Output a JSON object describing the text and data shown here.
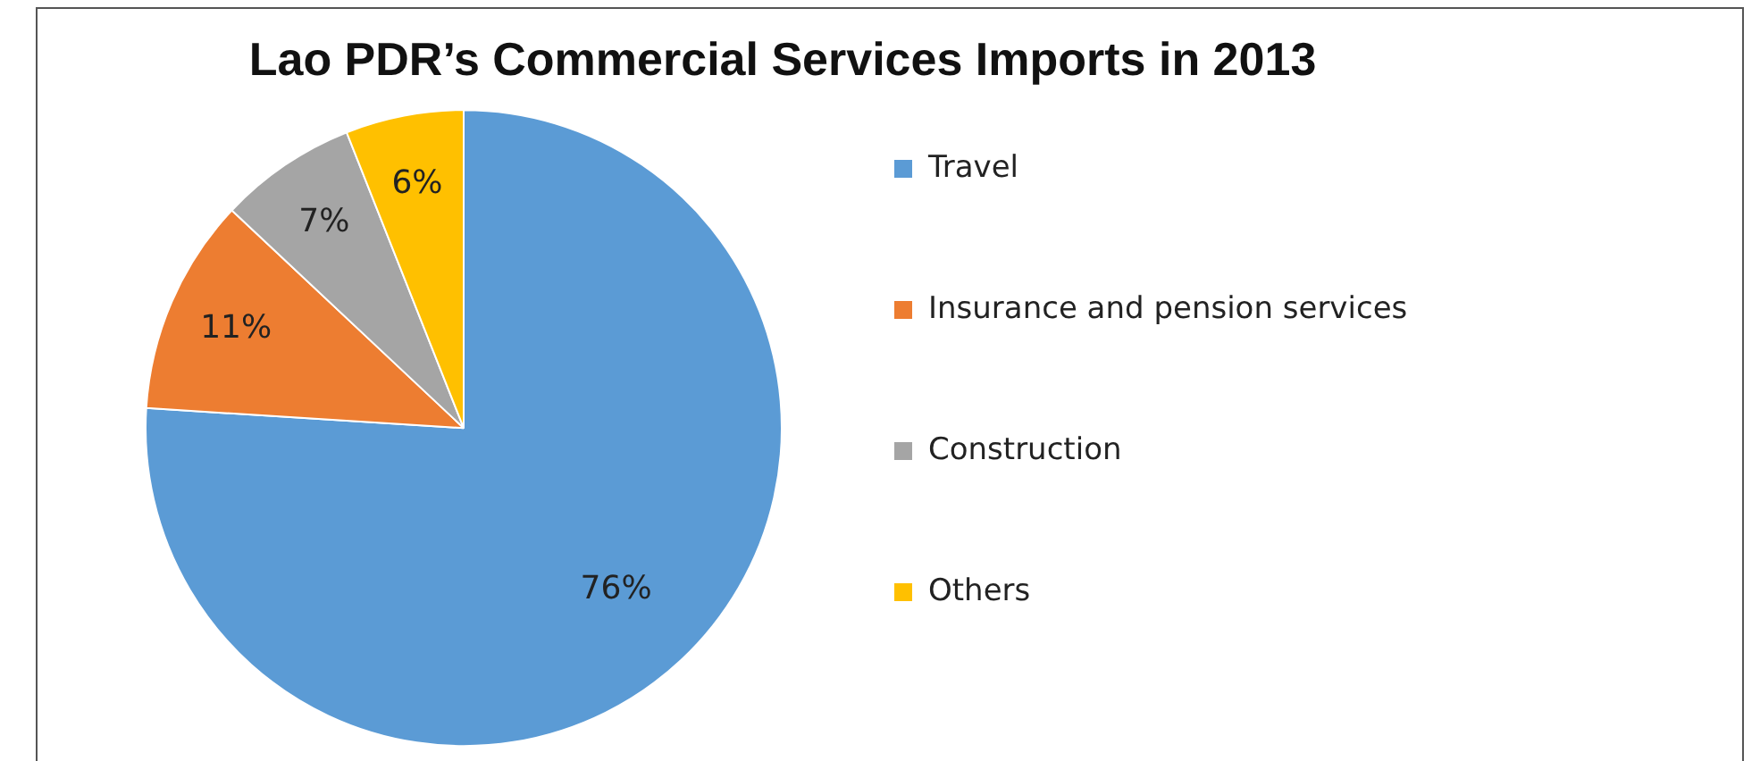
{
  "chart_data": {
    "type": "pie",
    "title": "Lao PDR’s Commercial Services Imports in 2013",
    "categories": [
      "Travel",
      "Insurance and pension services",
      "Construction",
      "Others"
    ],
    "values": [
      76,
      11,
      7,
      6
    ],
    "value_labels": [
      "76%",
      "11%",
      "7%",
      "6%"
    ],
    "colors": [
      "#5b9bd5",
      "#ed7d31",
      "#a5a5a5",
      "#ffc000"
    ],
    "legend": "right"
  }
}
